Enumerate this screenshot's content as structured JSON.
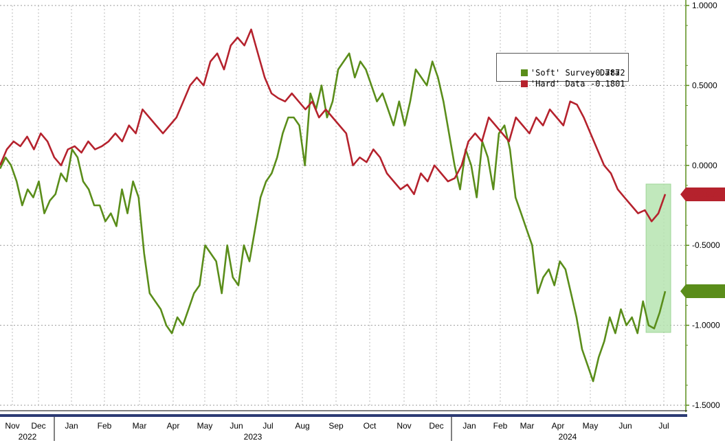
{
  "chart_data": {
    "type": "line",
    "y_axis_side": "right",
    "ylim": [
      -1.5,
      1.0
    ],
    "y_ticks": [
      "1.0000",
      "0.5000",
      "0.0000",
      "-0.5000",
      "-1.0000",
      "-1.5000"
    ],
    "x_month_labels": [
      "Nov",
      "Dec",
      "Jan",
      "Feb",
      "Mar",
      "Apr",
      "May",
      "Jun",
      "Jul",
      "Aug",
      "Sep",
      "Oct",
      "Nov",
      "Dec",
      "Jan",
      "Feb",
      "Mar",
      "Apr",
      "May",
      "Jun",
      "Jul"
    ],
    "x_year_labels": [
      "2022",
      "2023",
      "2024"
    ],
    "grid": true,
    "legend_position": "top-right",
    "highlight": {
      "x_range": [
        0.94,
        1.0
      ],
      "color": "#b7e4b1",
      "description": "shaded recent period"
    },
    "series": [
      {
        "name": "'Soft' Survey Data",
        "value_label": "-0.7872",
        "color": "#5a8d1a",
        "values": [
          -0.02,
          0.05,
          0.0,
          -0.1,
          -0.25,
          -0.15,
          -0.2,
          -0.1,
          -0.3,
          -0.22,
          -0.18,
          -0.05,
          -0.1,
          0.1,
          0.05,
          -0.1,
          -0.15,
          -0.25,
          -0.25,
          -0.35,
          -0.3,
          -0.38,
          -0.15,
          -0.3,
          -0.1,
          -0.2,
          -0.55,
          -0.8,
          -0.85,
          -0.9,
          -1.0,
          -1.05,
          -0.95,
          -1.0,
          -0.9,
          -0.8,
          -0.75,
          -0.5,
          -0.55,
          -0.6,
          -0.8,
          -0.5,
          -0.7,
          -0.75,
          -0.5,
          -0.6,
          -0.4,
          -0.2,
          -0.1,
          -0.05,
          0.05,
          0.2,
          0.3,
          0.3,
          0.25,
          0.0,
          0.45,
          0.35,
          0.5,
          0.3,
          0.4,
          0.6,
          0.65,
          0.7,
          0.55,
          0.65,
          0.6,
          0.5,
          0.4,
          0.45,
          0.35,
          0.25,
          0.4,
          0.25,
          0.4,
          0.6,
          0.55,
          0.5,
          0.65,
          0.55,
          0.4,
          0.2,
          0.0,
          -0.15,
          0.1,
          0.0,
          -0.2,
          0.15,
          0.05,
          -0.15,
          0.2,
          0.25,
          0.1,
          -0.2,
          -0.3,
          -0.4,
          -0.5,
          -0.8,
          -0.7,
          -0.65,
          -0.75,
          -0.6,
          -0.65,
          -0.8,
          -0.95,
          -1.15,
          -1.25,
          -1.35,
          -1.2,
          -1.1,
          -0.95,
          -1.05,
          -0.9,
          -1.0,
          -0.95,
          -1.05,
          -0.85,
          -1.0,
          -1.02,
          -0.92,
          -0.7872
        ]
      },
      {
        "name": "'Hard' Data",
        "value_label": "-0.1801",
        "color": "#b5222d",
        "values": [
          0.0,
          0.1,
          0.15,
          0.12,
          0.18,
          0.1,
          0.2,
          0.15,
          0.05,
          0.0,
          0.1,
          0.12,
          0.08,
          0.15,
          0.1,
          0.12,
          0.15,
          0.2,
          0.15,
          0.25,
          0.2,
          0.35,
          0.3,
          0.25,
          0.2,
          0.25,
          0.3,
          0.4,
          0.5,
          0.55,
          0.5,
          0.65,
          0.7,
          0.6,
          0.75,
          0.8,
          0.75,
          0.85,
          0.7,
          0.55,
          0.45,
          0.42,
          0.4,
          0.45,
          0.4,
          0.35,
          0.4,
          0.3,
          0.35,
          0.3,
          0.25,
          0.2,
          0.0,
          0.05,
          0.02,
          0.1,
          0.05,
          -0.05,
          -0.1,
          -0.15,
          -0.12,
          -0.18,
          -0.05,
          -0.1,
          0.0,
          -0.05,
          -0.1,
          -0.08,
          0.0,
          0.15,
          0.2,
          0.15,
          0.3,
          0.25,
          0.2,
          0.15,
          0.3,
          0.25,
          0.2,
          0.3,
          0.25,
          0.35,
          0.3,
          0.25,
          0.4,
          0.38,
          0.3,
          0.2,
          0.1,
          0.0,
          -0.05,
          -0.15,
          -0.2,
          -0.25,
          -0.3,
          -0.28,
          -0.35,
          -0.3,
          -0.1801
        ]
      }
    ]
  },
  "legend": {
    "soft_label": "'Soft' Survey Data",
    "soft_value": "-0.7872",
    "hard_label": "'Hard' Data",
    "hard_value": "-0.1801"
  },
  "tags": {
    "hard": "-0.1801",
    "soft": "-0.7872"
  }
}
